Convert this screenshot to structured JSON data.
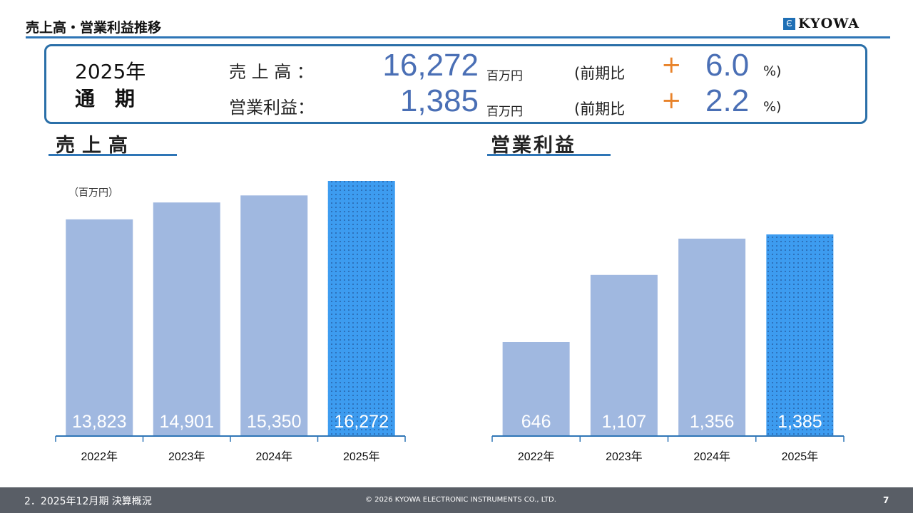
{
  "header": {
    "title": "売上高・営業利益推移",
    "logo": "KYOWA"
  },
  "summary": {
    "period_line1": "2025年",
    "period_line2": "通　期",
    "rows": [
      {
        "label": "売 上 高 ：",
        "value": "16,272",
        "unit": "百万円",
        "cmp": "(前期比",
        "sign": "+",
        "pct": "6.0",
        "pct_unit": "%)"
      },
      {
        "label": "営業利益：",
        "value": "1,385",
        "unit": "百万円",
        "cmp": "(前期比",
        "sign": "+",
        "pct": "2.2",
        "pct_unit": "%)"
      }
    ]
  },
  "colors": {
    "bar": "#a0b8e0",
    "highlight": "#3d9cf0",
    "accent": "#2e75b6",
    "plus": "#e8832a"
  },
  "chart_data": [
    {
      "type": "bar",
      "title": "売上高",
      "unit_label": "（百万円）",
      "categories": [
        "2022年",
        "2023年",
        "2024年",
        "2025年"
      ],
      "values": [
        13823,
        14901,
        15350,
        16272
      ],
      "value_labels": [
        "13,823",
        "14,901",
        "15,350",
        "16,272"
      ],
      "highlight_index": 3,
      "ylim": [
        0,
        16272
      ]
    },
    {
      "type": "bar",
      "title": "営業利益",
      "categories": [
        "2022年",
        "2023年",
        "2024年",
        "2025年"
      ],
      "values": [
        646,
        1107,
        1356,
        1385
      ],
      "value_labels": [
        "646",
        "1,107",
        "1,356",
        "1,385"
      ],
      "highlight_index": 3,
      "ylim": [
        0,
        1385
      ]
    }
  ],
  "footer": {
    "section": "2．2025年12月期 決算概況",
    "copyright": "© 2026 KYOWA ELECTRONIC INSTRUMENTS CO., LTD.",
    "page": "7"
  }
}
